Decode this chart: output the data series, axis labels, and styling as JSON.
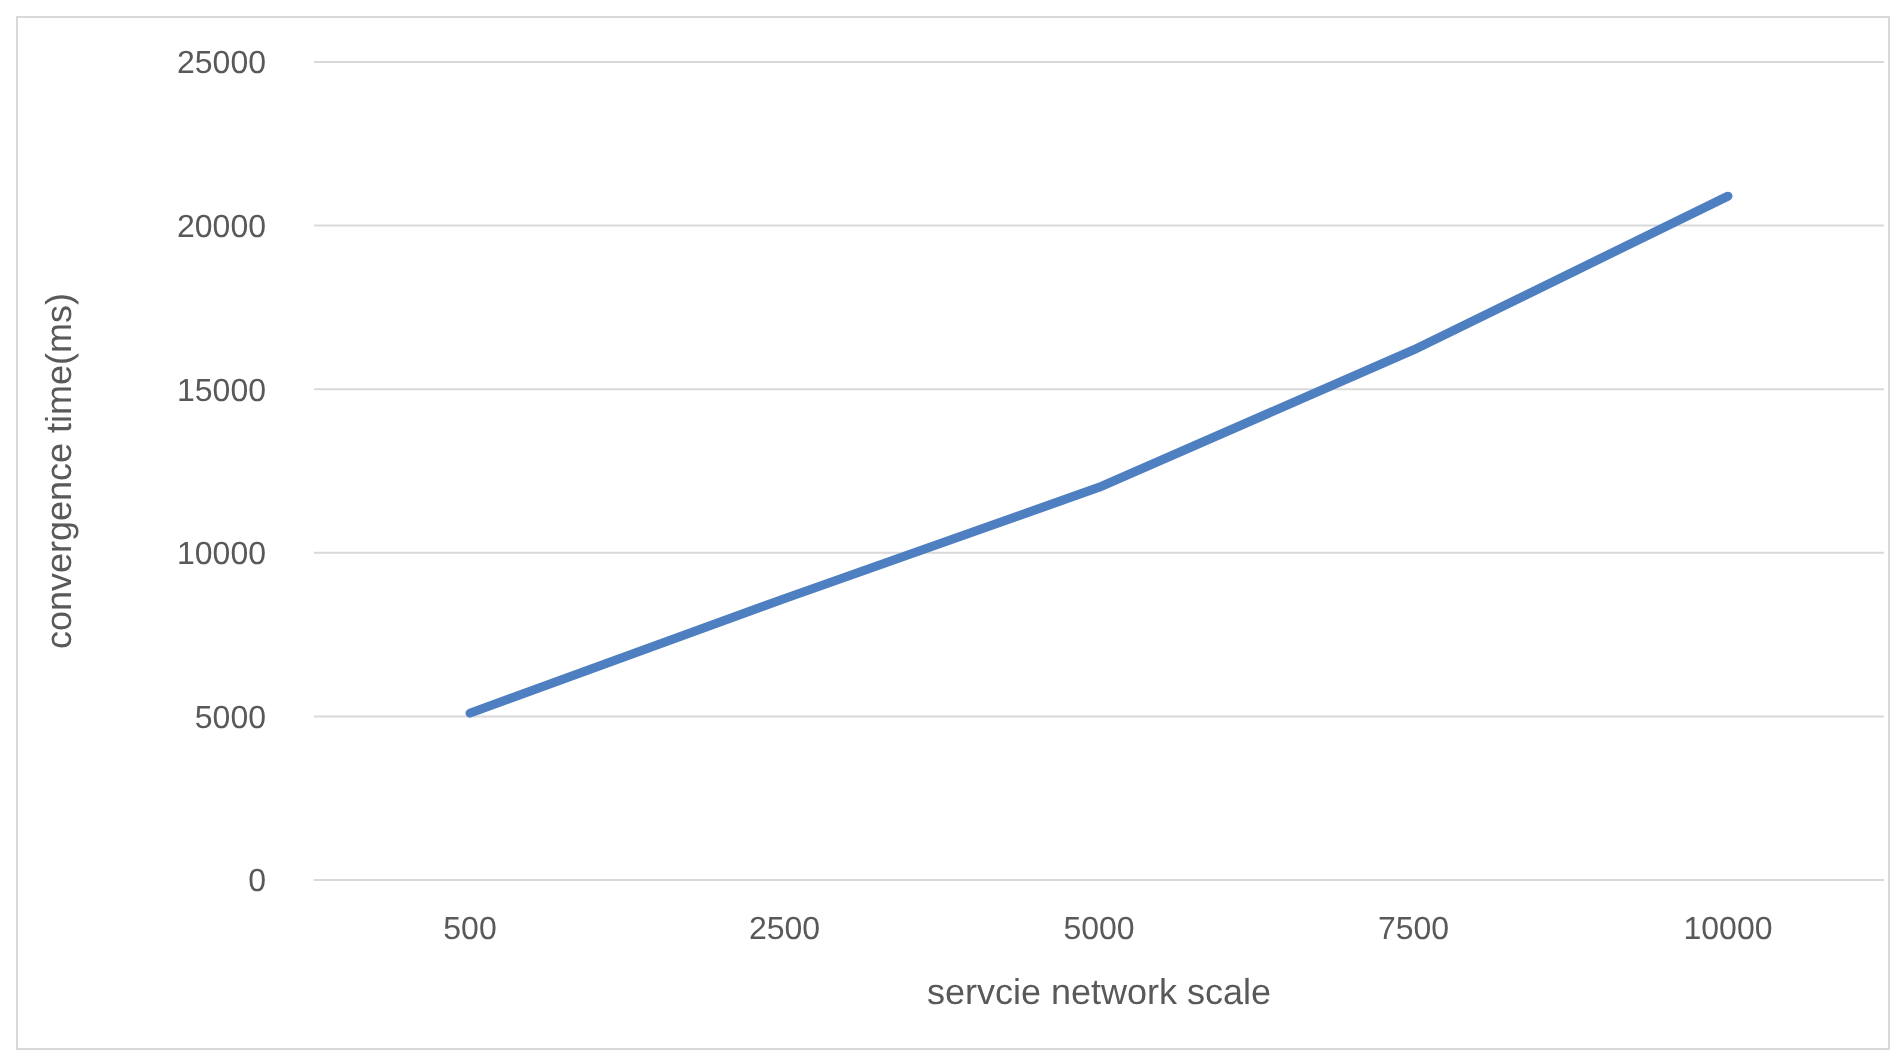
{
  "chart_data": {
    "type": "line",
    "xlabel": "servcie network scale",
    "ylabel": "convergence time(ms)",
    "categories": [
      "500",
      "2500",
      "5000",
      "7500",
      "10000"
    ],
    "series": [
      {
        "color": "#4e7fc0",
        "values": [
          5100,
          8600,
          12000,
          16200,
          20900
        ]
      }
    ],
    "ylim": [
      0,
      25000
    ],
    "yticks": [
      0,
      5000,
      10000,
      15000,
      20000,
      25000
    ],
    "grid": "y",
    "legend": false,
    "marker": "none",
    "line_style": "solid"
  }
}
